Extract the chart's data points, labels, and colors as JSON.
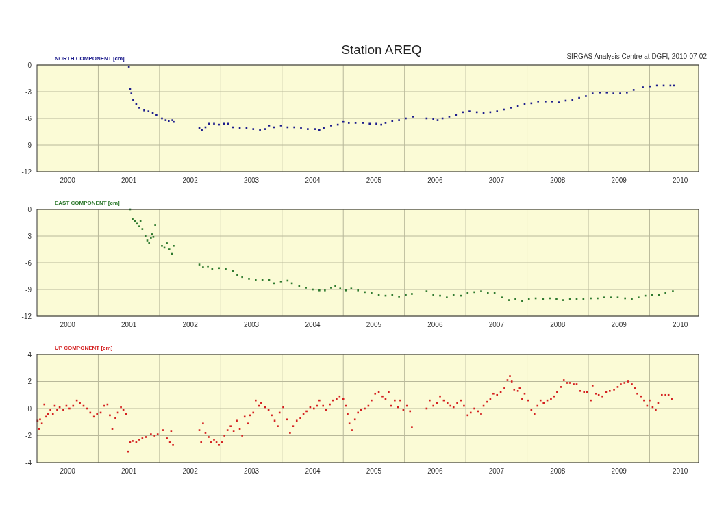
{
  "chart_data": [
    {
      "type": "scatter",
      "title": "Station AREQ",
      "annotations": [
        "SIRGAS Analysis Centre at DGFI, 2010-07-02"
      ],
      "ylabel": "NORTH COMPONENT [cm]",
      "marker": "square",
      "grid": true,
      "xlim": [
        2000,
        2010.8
      ],
      "ylim": [
        -12,
        0
      ],
      "yticks": [
        0,
        -3,
        -6,
        -9,
        -12
      ],
      "xticks": [
        {
          "value": 2000.5,
          "label": "2000"
        },
        {
          "value": 2001,
          "label": null
        },
        {
          "value": 2001.5,
          "label": "2001"
        },
        {
          "value": 2002,
          "label": null
        },
        {
          "value": 2002.5,
          "label": "2002"
        },
        {
          "value": 2003,
          "label": null
        },
        {
          "value": 2003.5,
          "label": "2003"
        },
        {
          "value": 2004,
          "label": null
        },
        {
          "value": 2004.5,
          "label": "2004"
        },
        {
          "value": 2005,
          "label": null
        },
        {
          "value": 2005.5,
          "label": "2005"
        },
        {
          "value": 2006,
          "label": null
        },
        {
          "value": 2006.5,
          "label": "2006"
        },
        {
          "value": 2007,
          "label": null
        },
        {
          "value": 2007.5,
          "label": "2007"
        },
        {
          "value": 2008,
          "label": null
        },
        {
          "value": 2008.5,
          "label": "2008"
        },
        {
          "value": 2009,
          "label": null
        },
        {
          "value": 2009.5,
          "label": "2009"
        },
        {
          "value": 2010,
          "label": null
        },
        {
          "value": 2010.5,
          "label": "2010"
        }
      ],
      "series": [
        {
          "color": "#1c1c8c",
          "x": [
            2001.5,
            2001.52,
            2001.54,
            2001.57,
            2001.62,
            2001.67,
            2001.75,
            2001.82,
            2001.89,
            2001.95,
            2002.04,
            2002.1,
            2002.15,
            2002.21,
            2002.23,
            2002.65,
            2002.69,
            2002.75,
            2002.81,
            2002.89,
            2002.97,
            2003.05,
            2003.12,
            2003.2,
            2003.31,
            2003.42,
            2003.53,
            2003.64,
            2003.72,
            2003.79,
            2003.87,
            2003.98,
            2004.09,
            2004.2,
            2004.31,
            2004.42,
            2004.54,
            2004.61,
            2004.68,
            2004.8,
            2004.91,
            2005.0,
            2005.09,
            2005.2,
            2005.32,
            2005.43,
            2005.54,
            2005.62,
            2005.69,
            2005.8,
            2005.91,
            2006.02,
            2006.14,
            2006.36,
            2006.47,
            2006.54,
            2006.62,
            2006.73,
            2006.84,
            2006.95,
            2007.06,
            2007.18,
            2007.29,
            2007.4,
            2007.51,
            2007.62,
            2007.74,
            2007.85,
            2007.96,
            2008.07,
            2008.18,
            2008.3,
            2008.41,
            2008.52,
            2008.63,
            2008.74,
            2008.85,
            2008.96,
            2009.07,
            2009.19,
            2009.3,
            2009.41,
            2009.52,
            2009.63,
            2009.74,
            2009.89,
            2010.01,
            2010.12,
            2010.23,
            2010.34,
            2010.4
          ],
          "values": [
            -0.2,
            -2.7,
            -3.2,
            -3.9,
            -4.4,
            -4.8,
            -5.1,
            -5.2,
            -5.4,
            -5.6,
            -6.0,
            -6.2,
            -6.3,
            -6.2,
            -6.4,
            -7.1,
            -7.3,
            -7.0,
            -6.6,
            -6.6,
            -6.7,
            -6.6,
            -6.6,
            -7.0,
            -7.1,
            -7.1,
            -7.2,
            -7.3,
            -7.2,
            -6.8,
            -7.0,
            -6.8,
            -7.0,
            -7.0,
            -7.1,
            -7.2,
            -7.2,
            -7.3,
            -7.1,
            -6.8,
            -6.7,
            -6.4,
            -6.5,
            -6.5,
            -6.5,
            -6.6,
            -6.6,
            -6.7,
            -6.5,
            -6.3,
            -6.2,
            -6.0,
            -5.8,
            -6.0,
            -6.1,
            -6.2,
            -6.0,
            -5.8,
            -5.6,
            -5.3,
            -5.2,
            -5.3,
            -5.4,
            -5.3,
            -5.2,
            -5.0,
            -4.8,
            -4.6,
            -4.4,
            -4.3,
            -4.1,
            -4.1,
            -4.1,
            -4.2,
            -4.0,
            -3.9,
            -3.7,
            -3.5,
            -3.2,
            -3.1,
            -3.1,
            -3.2,
            -3.2,
            -3.1,
            -2.8,
            -2.5,
            -2.4,
            -2.3,
            -2.3,
            -2.3,
            -2.3
          ]
        }
      ]
    },
    {
      "type": "scatter",
      "ylabel": "EAST COMPONENT [cm]",
      "marker": "square",
      "grid": true,
      "xlim": [
        2000,
        2010.8
      ],
      "ylim": [
        -12,
        0
      ],
      "yticks": [
        0,
        -3,
        -6,
        -9,
        -12
      ],
      "xticks": [
        {
          "value": 2000.5,
          "label": "2000"
        },
        {
          "value": 2001,
          "label": null
        },
        {
          "value": 2001.5,
          "label": "2001"
        },
        {
          "value": 2002,
          "label": null
        },
        {
          "value": 2002.5,
          "label": "2002"
        },
        {
          "value": 2003,
          "label": null
        },
        {
          "value": 2003.5,
          "label": "2003"
        },
        {
          "value": 2004,
          "label": null
        },
        {
          "value": 2004.5,
          "label": "2004"
        },
        {
          "value": 2005,
          "label": null
        },
        {
          "value": 2005.5,
          "label": "2005"
        },
        {
          "value": 2006,
          "label": null
        },
        {
          "value": 2006.5,
          "label": "2006"
        },
        {
          "value": 2007,
          "label": null
        },
        {
          "value": 2007.5,
          "label": "2007"
        },
        {
          "value": 2008,
          "label": null
        },
        {
          "value": 2008.5,
          "label": "2008"
        },
        {
          "value": 2009,
          "label": null
        },
        {
          "value": 2009.5,
          "label": "2009"
        },
        {
          "value": 2010,
          "label": null
        },
        {
          "value": 2010.5,
          "label": "2010"
        }
      ],
      "series": [
        {
          "color": "#2f7a2f",
          "x": [
            2001.52,
            2001.56,
            2001.6,
            2001.63,
            2001.67,
            2001.69,
            2001.72,
            2001.77,
            2001.8,
            2001.83,
            2001.86,
            2001.88,
            2001.9,
            2001.93,
            2002.04,
            2002.08,
            2002.12,
            2002.16,
            2002.2,
            2002.23,
            2002.65,
            2002.71,
            2002.79,
            2002.86,
            2002.97,
            2003.08,
            2003.2,
            2003.27,
            2003.35,
            2003.46,
            2003.57,
            2003.68,
            2003.79,
            2003.87,
            2003.98,
            2004.09,
            2004.16,
            2004.28,
            2004.39,
            2004.5,
            2004.61,
            2004.7,
            2004.8,
            2004.87,
            2004.95,
            2005.04,
            2005.13,
            2005.24,
            2005.35,
            2005.46,
            2005.58,
            2005.69,
            2005.8,
            2005.91,
            2006.02,
            2006.12,
            2006.36,
            2006.47,
            2006.58,
            2006.69,
            2006.8,
            2006.92,
            2007.03,
            2007.14,
            2007.25,
            2007.36,
            2007.47,
            2007.59,
            2007.7,
            2007.81,
            2007.92,
            2008.03,
            2008.14,
            2008.26,
            2008.37,
            2008.48,
            2008.59,
            2008.7,
            2008.81,
            2008.92,
            2009.04,
            2009.15,
            2009.26,
            2009.37,
            2009.48,
            2009.6,
            2009.71,
            2009.82,
            2009.93,
            2010.04,
            2010.15,
            2010.26,
            2010.38
          ],
          "values": [
            0,
            -1.1,
            -1.3,
            -1.6,
            -1.9,
            -1.3,
            -2.2,
            -3.0,
            -3.5,
            -3.8,
            -3.2,
            -2.8,
            -3.1,
            -1.8,
            -4.1,
            -4.3,
            -3.8,
            -4.5,
            -5.0,
            -4.1,
            -6.2,
            -6.5,
            -6.4,
            -6.7,
            -6.6,
            -6.7,
            -6.9,
            -7.4,
            -7.6,
            -7.8,
            -7.9,
            -7.9,
            -7.9,
            -8.3,
            -8.1,
            -8.0,
            -8.3,
            -8.6,
            -8.8,
            -9.0,
            -9.1,
            -9.1,
            -8.8,
            -8.6,
            -8.9,
            -9.1,
            -8.9,
            -9.1,
            -9.3,
            -9.4,
            -9.6,
            -9.7,
            -9.6,
            -9.8,
            -9.6,
            -9.5,
            -9.2,
            -9.6,
            -9.7,
            -9.9,
            -9.6,
            -9.7,
            -9.4,
            -9.3,
            -9.2,
            -9.4,
            -9.4,
            -9.9,
            -10.2,
            -10.1,
            -10.3,
            -10.1,
            -10.0,
            -10.1,
            -10.0,
            -10.1,
            -10.2,
            -10.1,
            -10.1,
            -10.1,
            -10.0,
            -10.0,
            -9.9,
            -9.9,
            -9.9,
            -10.0,
            -10.1,
            -9.9,
            -9.7,
            -9.6,
            -9.6,
            -9.4,
            -9.2
          ]
        }
      ]
    },
    {
      "type": "scatter",
      "ylabel": "UP COMPONENT [cm]",
      "marker": "square",
      "grid": true,
      "xlim": [
        2000,
        2010.8
      ],
      "ylim": [
        -4,
        4
      ],
      "yticks": [
        4,
        2,
        0,
        -2,
        -4
      ],
      "xticks": [
        {
          "value": 2000.5,
          "label": "2000"
        },
        {
          "value": 2001,
          "label": null
        },
        {
          "value": 2001.5,
          "label": "2001"
        },
        {
          "value": 2002,
          "label": null
        },
        {
          "value": 2002.5,
          "label": "2002"
        },
        {
          "value": 2003,
          "label": null
        },
        {
          "value": 2003.5,
          "label": "2003"
        },
        {
          "value": 2004,
          "label": null
        },
        {
          "value": 2004.5,
          "label": "2004"
        },
        {
          "value": 2005,
          "label": null
        },
        {
          "value": 2005.5,
          "label": "2005"
        },
        {
          "value": 2006,
          "label": null
        },
        {
          "value": 2006.5,
          "label": "2006"
        },
        {
          "value": 2007,
          "label": null
        },
        {
          "value": 2007.5,
          "label": "2007"
        },
        {
          "value": 2008,
          "label": null
        },
        {
          "value": 2008.5,
          "label": "2008"
        },
        {
          "value": 2009,
          "label": null
        },
        {
          "value": 2009.5,
          "label": "2009"
        },
        {
          "value": 2010,
          "label": null
        },
        {
          "value": 2010.5,
          "label": "2010"
        }
      ],
      "series": [
        {
          "color": "#d42020",
          "x": [
            2000.01,
            2000.03,
            2000.05,
            2000.08,
            2000.12,
            2000.15,
            2000.18,
            2000.22,
            2000.26,
            2000.29,
            2000.33,
            2000.37,
            2000.43,
            2000.48,
            2000.53,
            2000.59,
            2000.65,
            2000.7,
            2000.76,
            2000.82,
            2000.87,
            2000.93,
            2000.98,
            2001.04,
            2001.1,
            2001.15,
            2001.19,
            2001.23,
            2001.28,
            2001.32,
            2001.37,
            2001.41,
            2001.45,
            2001.49,
            2001.52,
            2001.56,
            2001.62,
            2001.67,
            2001.72,
            2001.78,
            2001.86,
            2001.92,
            2001.97,
            2002.06,
            2002.12,
            2002.17,
            2002.19,
            2002.22,
            2002.65,
            2002.68,
            2002.71,
            2002.75,
            2002.8,
            2002.84,
            2002.89,
            2002.93,
            2002.97,
            2003.02,
            2003.06,
            2003.11,
            2003.16,
            2003.21,
            2003.26,
            2003.31,
            2003.35,
            2003.39,
            2003.44,
            2003.48,
            2003.53,
            2003.57,
            2003.62,
            2003.66,
            2003.72,
            2003.78,
            2003.83,
            2003.88,
            2003.93,
            2003.96,
            2004.02,
            2004.08,
            2004.13,
            2004.18,
            2004.24,
            2004.3,
            2004.35,
            2004.4,
            2004.46,
            2004.52,
            2004.57,
            2004.61,
            2004.67,
            2004.72,
            2004.78,
            2004.83,
            2004.89,
            2004.94,
            2005.0,
            2005.04,
            2005.07,
            2005.1,
            2005.14,
            2005.19,
            2005.24,
            2005.29,
            2005.35,
            2005.41,
            2005.46,
            2005.52,
            2005.58,
            2005.64,
            2005.69,
            2005.74,
            2005.78,
            2005.84,
            2005.89,
            2005.93,
            2005.98,
            2006.04,
            2006.09,
            2006.12,
            2006.36,
            2006.41,
            2006.47,
            2006.53,
            2006.58,
            2006.64,
            2006.7,
            2006.75,
            2006.8,
            2006.86,
            2006.92,
            2006.97,
            2007.03,
            2007.08,
            2007.14,
            2007.2,
            2007.25,
            2007.29,
            2007.35,
            2007.4,
            2007.45,
            2007.51,
            2007.57,
            2007.63,
            2007.68,
            2007.72,
            2007.75,
            2007.79,
            2007.85,
            2007.88,
            2007.92,
            2007.96,
            2008.02,
            2008.07,
            2008.12,
            2008.17,
            2008.22,
            2008.27,
            2008.33,
            2008.39,
            2008.44,
            2008.49,
            2008.55,
            2008.6,
            2008.65,
            2008.7,
            2008.76,
            2008.81,
            2008.87,
            2008.93,
            2008.98,
            2009.04,
            2009.07,
            2009.12,
            2009.17,
            2009.23,
            2009.29,
            2009.35,
            2009.42,
            2009.48,
            2009.53,
            2009.59,
            2009.65,
            2009.71,
            2009.76,
            2009.8,
            2009.86,
            2009.91,
            2009.96,
            2010.0,
            2010.05,
            2010.1,
            2010.14,
            2010.2,
            2010.26,
            2010.31,
            2010.36
          ],
          "values": [
            -0.9,
            -1.5,
            -0.8,
            -1.1,
            0.3,
            -0.6,
            -0.4,
            -0.1,
            -0.4,
            0.2,
            -0.1,
            0.1,
            -0.1,
            0.2,
            0.0,
            0.2,
            0.6,
            0.4,
            0.2,
            0.0,
            -0.3,
            -0.6,
            -0.4,
            -0.3,
            0.2,
            0.3,
            -0.5,
            -1.5,
            -0.7,
            -0.3,
            0.1,
            -0.1,
            -0.4,
            -3.2,
            -2.5,
            -2.4,
            -2.5,
            -2.3,
            -2.2,
            -2.1,
            -1.9,
            -2.0,
            -1.9,
            -1.6,
            -2.2,
            -2.5,
            -1.7,
            -2.7,
            -1.6,
            -2.5,
            -1.1,
            -1.8,
            -2.1,
            -2.5,
            -2.3,
            -2.5,
            -2.7,
            -2.5,
            -2.0,
            -1.6,
            -1.3,
            -1.7,
            -0.9,
            -1.5,
            -2.0,
            -0.6,
            -1.1,
            -0.5,
            -0.3,
            0.6,
            0.2,
            0.4,
            0.1,
            -0.1,
            -0.5,
            -0.9,
            -1.3,
            -0.3,
            0.1,
            -0.8,
            -1.8,
            -1.3,
            -0.9,
            -0.7,
            -0.4,
            -0.2,
            0.1,
            0.0,
            0.2,
            0.6,
            0.2,
            -0.1,
            0.3,
            0.6,
            0.7,
            0.9,
            0.7,
            0.2,
            -0.4,
            -1.1,
            -1.6,
            -0.8,
            -0.3,
            -0.1,
            0.0,
            0.2,
            0.6,
            1.1,
            1.2,
            0.9,
            0.7,
            1.2,
            0.2,
            0.6,
            0.1,
            0.6,
            -0.1,
            0.2,
            -0.2,
            -1.4,
            0.0,
            0.6,
            0.2,
            0.4,
            0.9,
            0.6,
            0.4,
            0.2,
            0.1,
            0.4,
            0.6,
            0.2,
            -0.5,
            -0.3,
            0.0,
            -0.2,
            -0.4,
            0.2,
            0.5,
            0.7,
            1.1,
            1.0,
            1.2,
            1.5,
            2.1,
            2.4,
            2.0,
            1.4,
            1.3,
            1.5,
            0.7,
            1.1,
            0.6,
            -0.1,
            -0.4,
            0.2,
            0.6,
            0.4,
            0.6,
            0.7,
            0.9,
            1.2,
            1.6,
            2.1,
            1.9,
            1.9,
            1.8,
            1.8,
            1.3,
            1.2,
            1.2,
            0.6,
            1.7,
            1.1,
            1.0,
            0.9,
            1.2,
            1.3,
            1.4,
            1.6,
            1.8,
            1.9,
            2.0,
            1.8,
            1.5,
            1.1,
            0.9,
            0.6,
            0.2,
            0.6,
            0.1,
            -0.1,
            0.4,
            1.0,
            1.0,
            1.0,
            0.7
          ]
        }
      ]
    }
  ]
}
